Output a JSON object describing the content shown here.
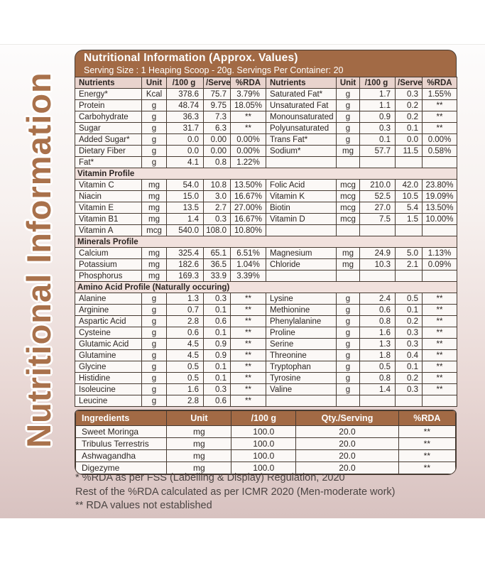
{
  "side_title": "Nutritional Information",
  "header": {
    "title": "Nutritional Information (Approx. Values)",
    "subtitle": "Serving Size : 1 Heaping Scoop - 20g. Servings Per Container: 20"
  },
  "main_table": {
    "columns": [
      "Nutrients",
      "Unit",
      "/100 g",
      "/Serve",
      "%RDA",
      "Nutrients",
      "Unit",
      "/100 g",
      "/Serve",
      "%RDA"
    ],
    "sections": [
      {
        "title": null,
        "rows": [
          [
            "Energy*",
            "Kcal",
            "378.6",
            "75.7",
            "3.79%",
            "Saturated Fat*",
            "g",
            "1.7",
            "0.3",
            "1.55%"
          ],
          [
            "Protein",
            "g",
            "48.74",
            "9.75",
            "18.05%",
            "Unsaturated Fat",
            "g",
            "1.1",
            "0.2",
            "**"
          ],
          [
            "Carbohydrate",
            "g",
            "36.3",
            "7.3",
            "**",
            "Monounsaturated",
            "g",
            "0.9",
            "0.2",
            "**"
          ],
          [
            "Sugar",
            "g",
            "31.7",
            "6.3",
            "**",
            "Polyunsaturated",
            "g",
            "0.3",
            "0.1",
            "**"
          ],
          [
            "Added Sugar*",
            "g",
            "0.0",
            "0.00",
            "0.00%",
            "Trans Fat*",
            "g",
            "0.1",
            "0.0",
            "0.00%"
          ],
          [
            "Dietary Fiber",
            "g",
            "0.0",
            "0.00",
            "0.00%",
            "Sodium*",
            "mg",
            "57.7",
            "11.5",
            "0.58%"
          ],
          [
            "Fat*",
            "g",
            "4.1",
            "0.8",
            "1.22%",
            "",
            "",
            "",
            "",
            ""
          ]
        ]
      },
      {
        "title": "Vitamin Profile",
        "rows": [
          [
            "Vitamin C",
            "mg",
            "54.0",
            "10.8",
            "13.50%",
            "Folic Acid",
            "mcg",
            "210.0",
            "42.0",
            "23.80%"
          ],
          [
            "Niacin",
            "mg",
            "15.0",
            "3.0",
            "16.67%",
            "Vitamin K",
            "mcg",
            "52.5",
            "10.5",
            "19.09%"
          ],
          [
            "Vitamin E",
            "mg",
            "13.5",
            "2.7",
            "27.00%",
            "Biotin",
            "mcg",
            "27.0",
            "5.4",
            "13.50%"
          ],
          [
            "Vitamin B1",
            "mg",
            "1.4",
            "0.3",
            "16.67%",
            "Vitamin D",
            "mcg",
            "7.5",
            "1.5",
            "10.00%"
          ],
          [
            "Vitamin A",
            "mcg",
            "540.0",
            "108.0",
            "10.80%",
            "",
            "",
            "",
            "",
            ""
          ]
        ]
      },
      {
        "title": "Minerals Profile",
        "rows": [
          [
            "Calcium",
            "mg",
            "325.4",
            "65.1",
            "6.51%",
            "Magnesium",
            "mg",
            "24.9",
            "5.0",
            "1.13%"
          ],
          [
            "Potassium",
            "mg",
            "182.6",
            "36.5",
            "1.04%",
            "Chloride",
            "mg",
            "10.3",
            "2.1",
            "0.09%"
          ],
          [
            "Phosphorus",
            "mg",
            "169.3",
            "33.9",
            "3.39%",
            "",
            "",
            "",
            "",
            ""
          ]
        ]
      },
      {
        "title": "Amino Acid Profile (Naturally occuring)",
        "rows": [
          [
            "Alanine",
            "g",
            "1.3",
            "0.3",
            "**",
            "Lysine",
            "g",
            "2.4",
            "0.5",
            "**"
          ],
          [
            "Arginine",
            "g",
            "0.7",
            "0.1",
            "**",
            "Methionine",
            "g",
            "0.6",
            "0.1",
            "**"
          ],
          [
            "Aspartic Acid",
            "g",
            "2.8",
            "0.6",
            "**",
            "Phenylalanine",
            "g",
            "0.8",
            "0.2",
            "**"
          ],
          [
            "Cysteine",
            "g",
            "0.6",
            "0.1",
            "**",
            "Proline",
            "g",
            "1.6",
            "0.3",
            "**"
          ],
          [
            "Glutamic Acid",
            "g",
            "4.5",
            "0.9",
            "**",
            "Serine",
            "g",
            "1.3",
            "0.3",
            "**"
          ],
          [
            "Glutamine",
            "g",
            "4.5",
            "0.9",
            "**",
            "Threonine",
            "g",
            "1.8",
            "0.4",
            "**"
          ],
          [
            "Glycine",
            "g",
            "0.5",
            "0.1",
            "**",
            "Tryptophan",
            "g",
            "0.5",
            "0.1",
            "**"
          ],
          [
            "Histidine",
            "g",
            "0.5",
            "0.1",
            "**",
            "Tyrosine",
            "g",
            "0.8",
            "0.2",
            "**"
          ],
          [
            "Isoleucine",
            "g",
            "1.6",
            "0.3",
            "**",
            "Valine",
            "g",
            "1.4",
            "0.3",
            "**"
          ],
          [
            "Leucine",
            "g",
            "2.8",
            "0.6",
            "**",
            "",
            "",
            "",
            "",
            ""
          ]
        ]
      }
    ]
  },
  "ingredients_table": {
    "columns": [
      "Ingredients",
      "Unit",
      "/100 g",
      "Qty./Serving",
      "%RDA"
    ],
    "rows": [
      [
        "Sweet Moringa",
        "mg",
        "100.0",
        "20.0",
        "**"
      ],
      [
        "Tribulus Terrestris",
        "mg",
        "100.0",
        "20.0",
        "**"
      ],
      [
        "Ashwagandha",
        "mg",
        "100.0",
        "20.0",
        "**"
      ],
      [
        "Digezyme",
        "mg",
        "100.0",
        "20.0",
        "**"
      ]
    ]
  },
  "footnotes": [
    "* %RDA as per FSS (Labelling & Display) Regulation, 2020",
    "Rest of the %RDA calculated as per ICMR 2020 (Men-moderate work)",
    "** RDA values not established"
  ],
  "colors": {
    "brand_brown": "#a26a45",
    "side_title_brown": "#a9714b",
    "column_header_pink": "#e8d3cd",
    "section_header_pink": "#f1e1dd",
    "row_background": "#fbf8f6",
    "panel_pink_bottom": "#d8c2c0",
    "border_dark": "#463a31",
    "header_text": "#ffffff",
    "body_text": "#2b2522",
    "footnote_text": "#4b4543"
  }
}
